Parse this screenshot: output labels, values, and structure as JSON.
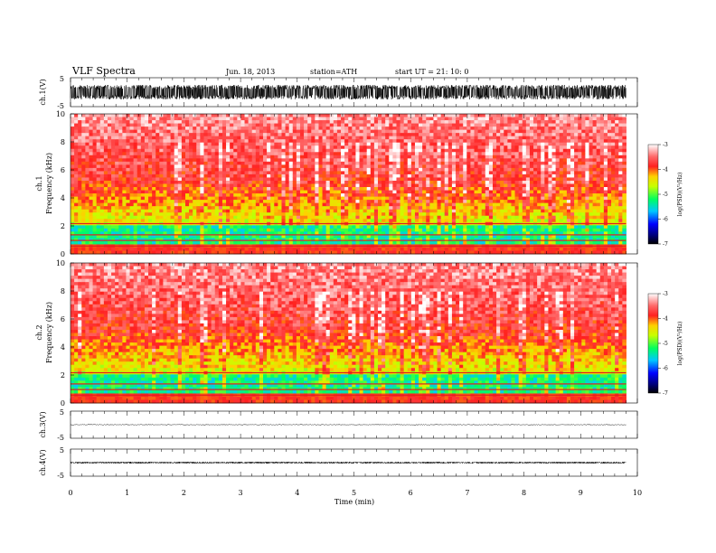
{
  "header": {
    "title": "VLF  Spectra",
    "date": "Jun. 18, 2013",
    "station": "station=ATH",
    "start_ut": "start  UT  =   21: 10: 0"
  },
  "chart_data": [
    {
      "type": "line",
      "id": "ch1-waveform",
      "ylabel": "ch.1(V)",
      "ylim": [
        -5,
        5
      ],
      "yticks": [
        "5",
        "-5"
      ],
      "xlim": [
        0,
        10
      ],
      "amplitude_approx": 2.5
    },
    {
      "type": "heatmap",
      "id": "ch1-spectrogram",
      "ylabel": "ch.1\nFrequency (kHz)",
      "ylabel_line1": "ch.1",
      "ylabel_line2": "Frequency (kHz)",
      "ylim": [
        0,
        10
      ],
      "yticks": [
        "0",
        "2",
        "4",
        "6",
        "8",
        "10"
      ],
      "xlim": [
        0,
        10
      ],
      "data_end_min": 9.8,
      "colorbar": {
        "label": "log(PSD)(V²/Hz)",
        "range": [
          -7,
          -3
        ],
        "ticks": [
          "-3",
          "-4",
          "-5",
          "-6",
          "-7"
        ]
      },
      "dominant_level_above_3kHz": -3.8,
      "dominant_level_below_2kHz": -5.3
    },
    {
      "type": "heatmap",
      "id": "ch2-spectrogram",
      "ylabel": "ch.2\nFrequency (kHz)",
      "ylabel_line1": "ch.2",
      "ylabel_line2": "Frequency (kHz)",
      "ylim": [
        0,
        10
      ],
      "yticks": [
        "0",
        "2",
        "4",
        "6",
        "8",
        "10"
      ],
      "xlim": [
        0,
        10
      ],
      "data_end_min": 9.8,
      "colorbar": {
        "label": "log(PSD)(V²/Hz)",
        "range": [
          -7,
          -3
        ],
        "ticks": [
          "-3",
          "-4",
          "-5",
          "-6",
          "-7"
        ]
      },
      "dominant_level_above_3kHz": -3.8,
      "dominant_level_below_2kHz": -5.3
    },
    {
      "type": "line",
      "id": "ch3-waveform",
      "ylabel": "ch.3(V)",
      "ylim": [
        -5,
        5
      ],
      "yticks": [
        "5",
        "-5"
      ],
      "xlim": [
        0,
        10
      ],
      "amplitude_approx": 0.1
    },
    {
      "type": "line",
      "id": "ch4-waveform",
      "ylabel": "ch.4(V)",
      "ylim": [
        -5,
        5
      ],
      "yticks": [
        "5",
        "-5"
      ],
      "xlim": [
        0,
        10
      ],
      "amplitude_approx": 0.3
    }
  ],
  "xaxis": {
    "label": "Time  (min)",
    "ticks": [
      "0",
      "1",
      "2",
      "3",
      "4",
      "5",
      "6",
      "7",
      "8",
      "9",
      "10"
    ]
  }
}
